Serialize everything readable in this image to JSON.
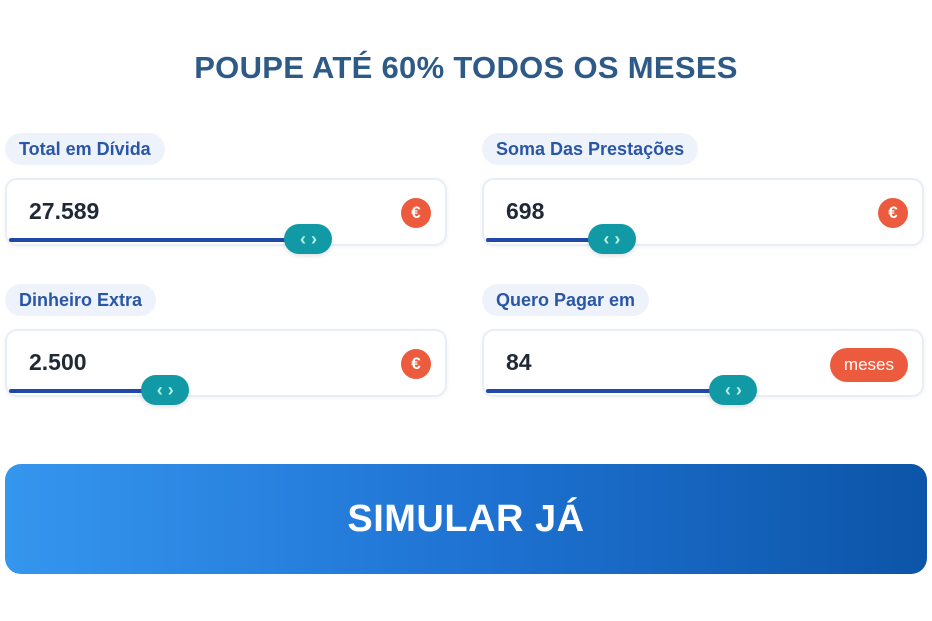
{
  "headline": "POUPE ATÉ 60% TODOS OS MESES",
  "fields": [
    {
      "label": "Total em Dívida",
      "value": "27.589",
      "unit": "€",
      "unit_icon": "euro-icon",
      "slider_fraction": 0.69
    },
    {
      "label": "Soma Das Prestações",
      "value": "698",
      "unit": "€",
      "unit_icon": "euro-icon",
      "slider_fraction": 0.29
    },
    {
      "label": "Dinheiro Extra",
      "value": "2.500",
      "unit": "€",
      "unit_icon": "euro-icon",
      "slider_fraction": 0.36
    },
    {
      "label": "Quero Pagar em",
      "value": "84",
      "unit": "meses",
      "slider_fraction": 0.57
    }
  ],
  "slider_handle_icon": "chevron-left-right-icon",
  "cta_label": "SIMULAR JÁ",
  "colors": {
    "headline": "#2d5a86",
    "accent_orange": "#ec5b3d",
    "slider_fill": "#2148a8",
    "slider_handle": "#119aa6",
    "cta_gradient_start": "#3596ee",
    "cta_gradient_end": "#0c55a8"
  }
}
